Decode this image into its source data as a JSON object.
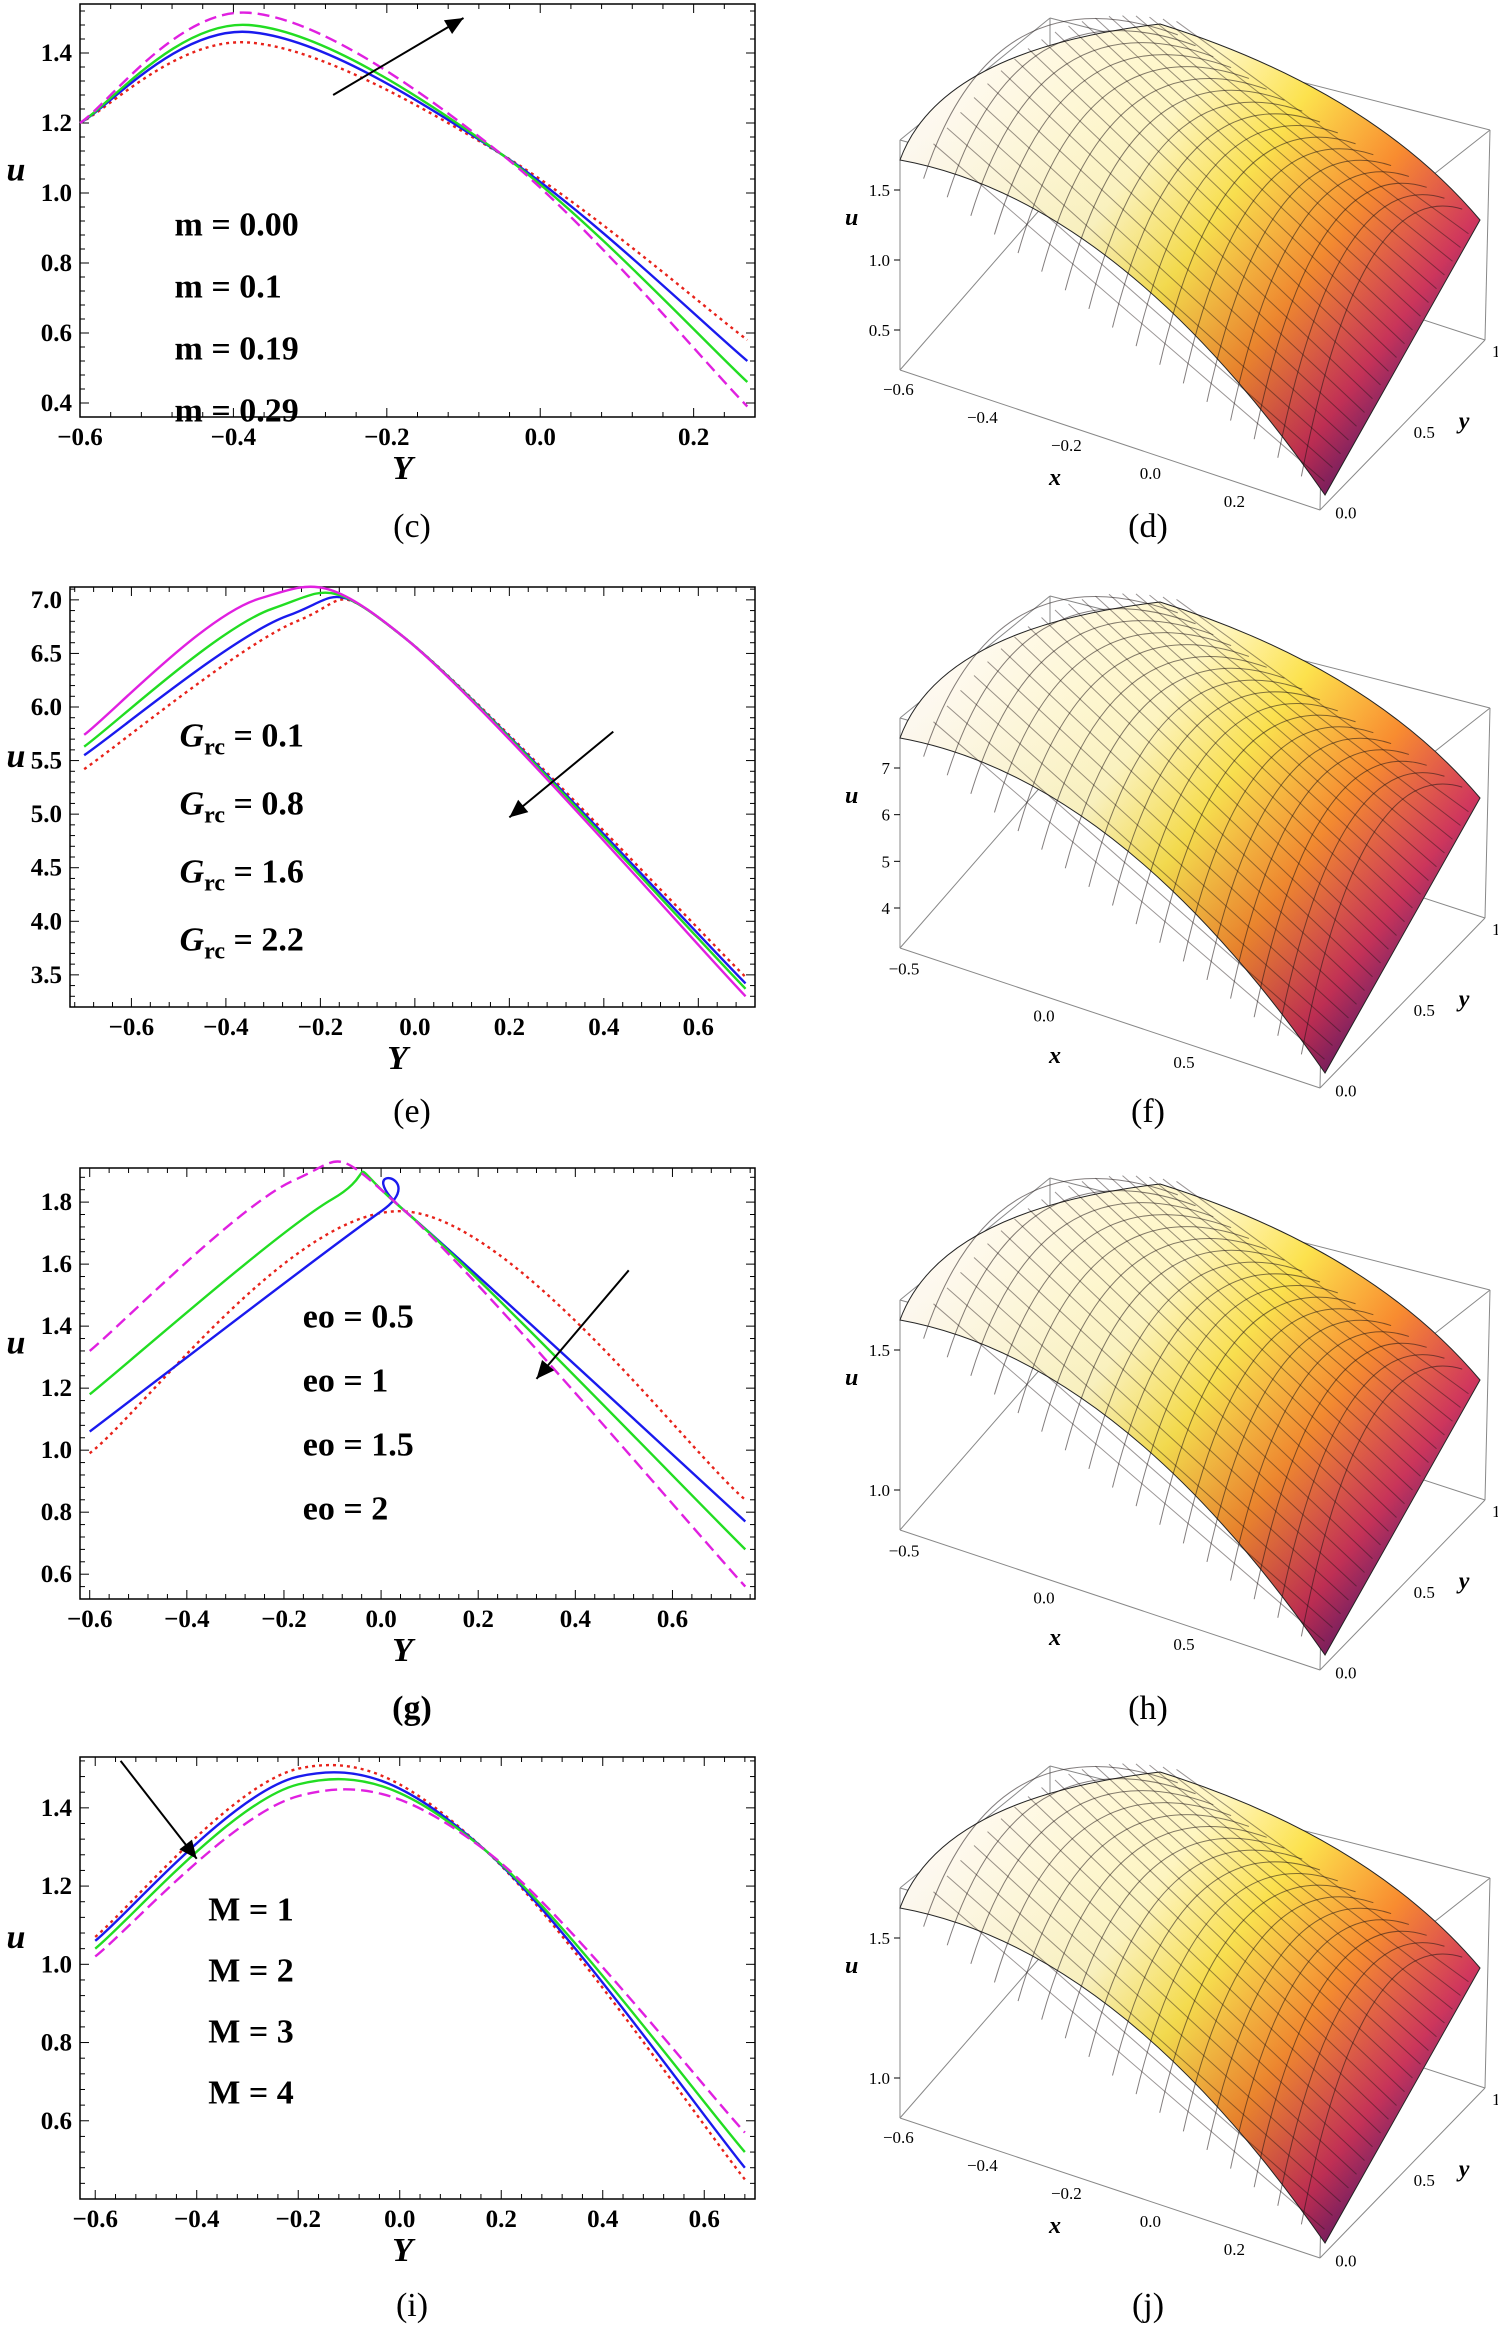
{
  "chart_data": [
    {
      "id": "c",
      "caption": "(c)",
      "type": "line",
      "xlabel": "Y",
      "ylabel": "u",
      "xlim": [
        -0.6,
        0.28
      ],
      "ylim": [
        0.36,
        1.54
      ],
      "xticks": [
        -0.6,
        -0.4,
        -0.2,
        0.0,
        0.2
      ],
      "xtick_labels": [
        "−0.6",
        "−0.4",
        "−0.2",
        "0.0",
        "0.2"
      ],
      "yticks": [
        0.4,
        0.6,
        0.8,
        1.0,
        1.2,
        1.4
      ],
      "ytick_labels": [
        "0.4",
        "0.6",
        "0.8",
        "1.0",
        "1.2",
        "1.4"
      ],
      "legend": [
        {
          "name": "m",
          "eq": " = ",
          "value": "0.00"
        },
        {
          "name": "m",
          "eq": " = ",
          "value": "0.1"
        },
        {
          "name": "m",
          "eq": " = ",
          "value": "0.19"
        },
        {
          "name": "m",
          "eq": " = ",
          "value": "0.29"
        }
      ],
      "arrow": {
        "from": [
          -0.27,
          1.28
        ],
        "to": [
          -0.1,
          1.5
        ]
      },
      "series": [
        {
          "name": "m = 0.00",
          "color": "#e8221a",
          "dash": "dotted",
          "points": [
            [
              -0.6,
              1.2
            ],
            [
              -0.38,
              1.43
            ],
            [
              -0.05,
              1.11
            ],
            [
              0.27,
              0.58
            ]
          ]
        },
        {
          "name": "m = 0.1",
          "color": "#1a1aee",
          "dash": "solid",
          "points": [
            [
              -0.6,
              1.2
            ],
            [
              -0.38,
              1.46
            ],
            [
              -0.05,
              1.11
            ],
            [
              0.27,
              0.52
            ]
          ]
        },
        {
          "name": "m = 0.19",
          "color": "#22dd22",
          "dash": "solid",
          "points": [
            [
              -0.6,
              1.2
            ],
            [
              -0.38,
              1.48
            ],
            [
              -0.05,
              1.11
            ],
            [
              0.27,
              0.46
            ]
          ]
        },
        {
          "name": "m = 0.29",
          "color": "#e020e0",
          "dash": "dashed",
          "points": [
            [
              -0.6,
              1.2
            ],
            [
              -0.38,
              1.515
            ],
            [
              -0.05,
              1.11
            ],
            [
              0.27,
              0.39
            ]
          ]
        }
      ]
    },
    {
      "id": "e",
      "caption": "(e)",
      "type": "line",
      "xlabel": "Y",
      "ylabel": "u",
      "xlim": [
        -0.73,
        0.72
      ],
      "ylim": [
        3.2,
        7.12
      ],
      "xticks": [
        -0.6,
        -0.4,
        -0.2,
        0.0,
        0.2,
        0.4,
        0.6
      ],
      "xtick_labels": [
        "−0.6",
        "−0.4",
        "−0.2",
        "0.0",
        "0.2",
        "0.4",
        "0.6"
      ],
      "yticks": [
        3.5,
        4.0,
        4.5,
        5.0,
        5.5,
        6.0,
        6.5,
        7.0
      ],
      "ytick_labels": [
        "3.5",
        "4.0",
        "4.5",
        "5.0",
        "5.5",
        "6.0",
        "6.5",
        "7.0"
      ],
      "legend": [
        {
          "name": "G",
          "sub": "rc",
          "eq": "  = ",
          "value": "0.1"
        },
        {
          "name": "G",
          "sub": "rc",
          "eq": "  = ",
          "value": " 0.8"
        },
        {
          "name": "G",
          "sub": "rc",
          "eq": "  = ",
          "value": "1.6"
        },
        {
          "name": "G",
          "sub": "rc",
          "eq": "  = ",
          "value": "2.2"
        }
      ],
      "arrow": {
        "from": [
          0.42,
          5.77
        ],
        "to": [
          0.2,
          4.97
        ]
      },
      "series": [
        {
          "name": "Grc = 0.1",
          "color": "#e8221a",
          "dash": "dotted",
          "points": [
            [
              -0.7,
              5.42
            ],
            [
              -0.25,
              6.8
            ],
            [
              -0.02,
              6.64
            ],
            [
              0.7,
              3.48
            ]
          ]
        },
        {
          "name": "Grc = 0.8",
          "color": "#1a1aee",
          "dash": "solid",
          "points": [
            [
              -0.7,
              5.55
            ],
            [
              -0.27,
              6.85
            ],
            [
              -0.02,
              6.64
            ],
            [
              0.7,
              3.42
            ]
          ]
        },
        {
          "name": "Grc = 1.6",
          "color": "#22dd22",
          "dash": "solid",
          "points": [
            [
              -0.7,
              5.63
            ],
            [
              -0.3,
              6.92
            ],
            [
              -0.02,
              6.64
            ],
            [
              0.7,
              3.37
            ]
          ]
        },
        {
          "name": "Grc = 2.2",
          "color": "#e020e0",
          "dash": "solid",
          "points": [
            [
              -0.7,
              5.74
            ],
            [
              -0.33,
              7.01
            ],
            [
              -0.02,
              6.64
            ],
            [
              0.7,
              3.3
            ]
          ]
        }
      ]
    },
    {
      "id": "g",
      "caption": "(g)",
      "type": "line",
      "xlabel": "Y",
      "ylabel": "u",
      "xlim": [
        -0.62,
        0.77
      ],
      "ylim": [
        0.52,
        1.91
      ],
      "xticks": [
        -0.6,
        -0.4,
        -0.2,
        0.0,
        0.2,
        0.4,
        0.6
      ],
      "xtick_labels": [
        "−0.6",
        "−0.4",
        "−0.2",
        "0.0",
        "0.2",
        "0.4",
        "0.6"
      ],
      "yticks": [
        0.6,
        0.8,
        1.0,
        1.2,
        1.4,
        1.6,
        1.8
      ],
      "ytick_labels": [
        "0.6",
        "0.8",
        "1.0",
        "1.2",
        "1.4",
        "1.6",
        "1.8"
      ],
      "legend": [
        {
          "name": "eo",
          "eq": " = ",
          "value": "0.5"
        },
        {
          "name": "eo",
          "eq": " = ",
          "value": "1"
        },
        {
          "name": "eo",
          "eq": " = ",
          "value": "1.5"
        },
        {
          "name": "eo",
          "eq": " = ",
          "value": "2"
        }
      ],
      "arrow": {
        "from": [
          0.51,
          1.58
        ],
        "to": [
          0.32,
          1.23
        ]
      },
      "series": [
        {
          "name": "eo = 0.5",
          "color": "#e8221a",
          "dash": "dotted",
          "points": [
            [
              -0.6,
              0.99
            ],
            [
              0.05,
              1.77
            ],
            [
              0.75,
              0.84
            ]
          ]
        },
        {
          "name": "eo = 1",
          "color": "#1a1aee",
          "dash": "solid",
          "points": [
            [
              -0.6,
              1.06
            ],
            [
              0.0,
              1.77
            ],
            [
              0.05,
              1.77
            ],
            [
              0.75,
              0.77
            ]
          ]
        },
        {
          "name": "eo = 1.5",
          "color": "#22dd22",
          "dash": "solid",
          "points": [
            [
              -0.6,
              1.18
            ],
            [
              -0.1,
              1.81
            ],
            [
              0.05,
              1.77
            ],
            [
              0.75,
              0.68
            ]
          ]
        },
        {
          "name": "eo = 2",
          "color": "#e020e0",
          "dash": "dashed",
          "points": [
            [
              -0.6,
              1.32
            ],
            [
              -0.18,
              1.87
            ],
            [
              0.05,
              1.77
            ],
            [
              0.75,
              0.56
            ]
          ]
        }
      ]
    },
    {
      "id": "i",
      "caption": "(i)",
      "type": "line",
      "xlabel": "Y",
      "ylabel": "u",
      "xlim": [
        -0.63,
        0.7
      ],
      "ylim": [
        0.4,
        1.53
      ],
      "xticks": [
        -0.6,
        -0.4,
        -0.2,
        0.0,
        0.2,
        0.4,
        0.6
      ],
      "xtick_labels": [
        "−0.6",
        "−0.4",
        "−0.2",
        "0.0",
        "0.2",
        "0.4",
        "0.6"
      ],
      "yticks": [
        0.6,
        0.8,
        1.0,
        1.2,
        1.4
      ],
      "ytick_labels": [
        "0.6",
        "0.8",
        "1.0",
        "1.2",
        "1.4"
      ],
      "legend": [
        {
          "name": "M",
          "eq": " = ",
          "value": "1"
        },
        {
          "name": "M",
          "eq": " = ",
          "value": "2"
        },
        {
          "name": "M",
          "eq": " = ",
          "value": "3"
        },
        {
          "name": "M",
          "eq": " = ",
          "value": "4"
        }
      ],
      "arrow": {
        "from": [
          -0.55,
          1.52
        ],
        "to": [
          -0.4,
          1.27
        ]
      },
      "series": [
        {
          "name": "M = 1",
          "color": "#e8221a",
          "dash": "dotted",
          "points": [
            [
              -0.6,
              1.07
            ],
            [
              -0.2,
              1.5
            ],
            [
              0.17,
              1.29
            ],
            [
              0.68,
              0.45
            ]
          ]
        },
        {
          "name": "M = 2",
          "color": "#1a1aee",
          "dash": "solid",
          "points": [
            [
              -0.6,
              1.06
            ],
            [
              -0.2,
              1.48
            ],
            [
              0.17,
              1.29
            ],
            [
              0.68,
              0.48
            ]
          ]
        },
        {
          "name": "M = 3",
          "color": "#22dd22",
          "dash": "solid",
          "points": [
            [
              -0.6,
              1.04
            ],
            [
              -0.2,
              1.46
            ],
            [
              0.17,
              1.29
            ],
            [
              0.68,
              0.52
            ]
          ]
        },
        {
          "name": "M = 4",
          "color": "#e020e0",
          "dash": "dashed",
          "points": [
            [
              -0.6,
              1.02
            ],
            [
              -0.2,
              1.43
            ],
            [
              0.17,
              1.29
            ],
            [
              0.68,
              0.57
            ]
          ]
        }
      ]
    }
  ],
  "surfaces": [
    {
      "id": "d",
      "caption": "(d)",
      "type": "surface",
      "u_ticks": [
        "0.5",
        "1.0",
        "1.5"
      ],
      "u_label": "u",
      "x_ticks": [
        "−0.6",
        "−0.4",
        "−0.2",
        "0.0",
        "0.2"
      ],
      "x_label": "x",
      "y_ticks": [
        "0.0",
        "0.5",
        "1.0"
      ],
      "y_label": "y"
    },
    {
      "id": "f",
      "caption": "(f)",
      "type": "surface",
      "u_ticks": [
        "4",
        "5",
        "6",
        "7"
      ],
      "u_label": "u",
      "x_ticks": [
        "−0.5",
        "0.0",
        "0.5"
      ],
      "x_label": "x",
      "y_ticks": [
        "0.0",
        "0.5",
        "1.0"
      ],
      "y_label": "y"
    },
    {
      "id": "h",
      "caption": "(h)",
      "type": "surface",
      "u_ticks": [
        "1.0",
        "1.5"
      ],
      "u_label": "u",
      "x_ticks": [
        "−0.5",
        "0.0",
        "0.5"
      ],
      "x_label": "x",
      "y_ticks": [
        "0.0",
        "0.5",
        "1.0"
      ],
      "y_label": "y"
    },
    {
      "id": "j",
      "caption": "(j)",
      "type": "surface",
      "u_ticks": [
        "1.0",
        "1.5"
      ],
      "u_label": "u",
      "x_ticks": [
        "−0.6",
        "−0.4",
        "−0.2",
        "0.0",
        "0.2"
      ],
      "x_label": "x",
      "y_ticks": [
        "0.0",
        "0.5",
        "1.0"
      ],
      "y_label": "y"
    }
  ]
}
